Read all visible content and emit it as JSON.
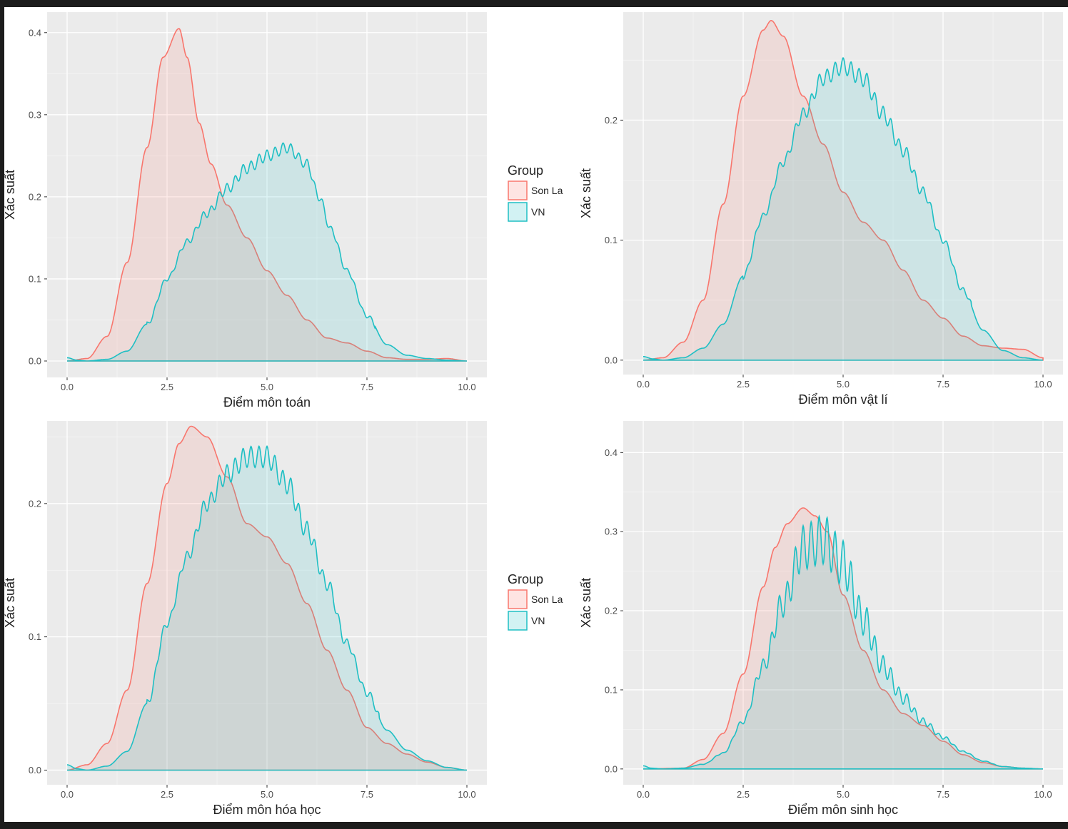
{
  "colors": {
    "son_la_line": "#F8766D",
    "son_la_fill": "#F8766D",
    "vn_line": "#1FBFC4",
    "vn_fill": "#1FBFC4",
    "panel_bg": "#EBEBEB",
    "grid": "#FFFFFF"
  },
  "legend": {
    "title": "Group",
    "entries": [
      "Son La",
      "VN"
    ]
  },
  "chart_data": [
    {
      "type": "area",
      "xlabel": "Điểm môn toán",
      "ylabel": "Xác suất",
      "xlim": [
        -0.5,
        10.5
      ],
      "ylim": [
        -0.02,
        0.425
      ],
      "xticks": [
        0,
        2.5,
        5,
        7.5,
        10
      ],
      "xtick_labels": [
        "0.0",
        "2.5",
        "5.0",
        "7.5",
        "10.0"
      ],
      "yticks": [
        0,
        0.1,
        0.2,
        0.3,
        0.4
      ],
      "ytick_labels": [
        "0.0",
        "0.1",
        "0.2",
        "0.3",
        "0.4"
      ],
      "series": [
        {
          "name": "Son La",
          "x": [
            0,
            0.5,
            1.0,
            1.5,
            2.0,
            2.4,
            2.8,
            3.0,
            3.3,
            3.6,
            4.0,
            4.5,
            5.0,
            5.5,
            6.0,
            6.5,
            7.0,
            7.5,
            8.0,
            8.5,
            9.0,
            9.5,
            10
          ],
          "y": [
            0,
            0.003,
            0.03,
            0.12,
            0.26,
            0.37,
            0.405,
            0.37,
            0.29,
            0.24,
            0.19,
            0.15,
            0.11,
            0.08,
            0.05,
            0.028,
            0.022,
            0.012,
            0.004,
            0.002,
            0.002,
            0.003,
            0
          ]
        },
        {
          "name": "VN",
          "x": [
            0,
            0.25,
            0.5,
            1.0,
            1.5,
            2.0,
            2.5,
            3.0,
            3.5,
            4.0,
            4.5,
            5.0,
            5.5,
            6.0,
            6.3,
            6.6,
            7.0,
            7.5,
            8.0,
            8.5,
            9.0,
            9.5,
            10
          ],
          "y": [
            0.004,
            0.001,
            0.0,
            0.002,
            0.012,
            0.045,
            0.1,
            0.145,
            0.18,
            0.21,
            0.235,
            0.25,
            0.26,
            0.24,
            0.2,
            0.16,
            0.11,
            0.055,
            0.02,
            0.007,
            0.003,
            0.001,
            0
          ],
          "wiggle": 0.007,
          "wiggle_from": 2.0,
          "wiggle_to": 7.7
        }
      ]
    },
    {
      "type": "area",
      "xlabel": "Điểm môn vật lí",
      "ylabel": "Xác suất",
      "xlim": [
        -0.5,
        10.5
      ],
      "ylim": [
        -0.012,
        0.29
      ],
      "xticks": [
        0,
        2.5,
        5,
        7.5,
        10
      ],
      "xtick_labels": [
        "0.0",
        "2.5",
        "5.0",
        "7.5",
        "10.0"
      ],
      "yticks": [
        0,
        0.1,
        0.2
      ],
      "ytick_labels": [
        "0.0",
        "0.1",
        "0.2"
      ],
      "series": [
        {
          "name": "Son La",
          "x": [
            0,
            0.5,
            1.0,
            1.5,
            2.0,
            2.5,
            3.0,
            3.2,
            3.5,
            4.0,
            4.5,
            5.0,
            5.5,
            6.0,
            6.5,
            7.0,
            7.5,
            8.0,
            8.5,
            9.0,
            9.5,
            10
          ],
          "y": [
            0,
            0.002,
            0.015,
            0.05,
            0.13,
            0.22,
            0.275,
            0.283,
            0.27,
            0.22,
            0.18,
            0.14,
            0.115,
            0.1,
            0.075,
            0.05,
            0.035,
            0.02,
            0.012,
            0.01,
            0.009,
            0.002
          ],
          "line_only_baseline": false
        },
        {
          "name": "VN",
          "x": [
            0,
            0.25,
            0.5,
            1.0,
            1.5,
            2.0,
            2.5,
            3.0,
            3.5,
            4.0,
            4.5,
            5.0,
            5.5,
            6.0,
            6.5,
            7.0,
            7.5,
            8.0,
            8.5,
            9.0,
            9.5,
            10
          ],
          "y": [
            0.003,
            0.001,
            0.0,
            0.002,
            0.01,
            0.03,
            0.07,
            0.12,
            0.165,
            0.205,
            0.235,
            0.245,
            0.235,
            0.205,
            0.175,
            0.14,
            0.1,
            0.058,
            0.025,
            0.008,
            0.002,
            0.0
          ],
          "wiggle": 0.007,
          "wiggle_from": 2.5,
          "wiggle_to": 8.2
        }
      ]
    },
    {
      "type": "area",
      "xlabel": "Điểm môn hóa học",
      "ylabel": "Xác suất",
      "xlim": [
        -0.5,
        10.5
      ],
      "ylim": [
        -0.011,
        0.262
      ],
      "xticks": [
        0,
        2.5,
        5,
        7.5,
        10
      ],
      "xtick_labels": [
        "0.0",
        "2.5",
        "5.0",
        "7.5",
        "10.0"
      ],
      "yticks": [
        0,
        0.1,
        0.2
      ],
      "ytick_labels": [
        "0.0",
        "0.1",
        "0.2"
      ],
      "series": [
        {
          "name": "Son La",
          "x": [
            0,
            0.5,
            1.0,
            1.5,
            2.0,
            2.5,
            2.8,
            3.1,
            3.5,
            4.0,
            4.5,
            5.0,
            5.5,
            6.0,
            6.5,
            7.0,
            7.5,
            8.0,
            8.5,
            9.0,
            9.5,
            10
          ],
          "y": [
            0,
            0.004,
            0.02,
            0.06,
            0.14,
            0.215,
            0.245,
            0.258,
            0.25,
            0.22,
            0.185,
            0.175,
            0.155,
            0.125,
            0.09,
            0.06,
            0.032,
            0.02,
            0.012,
            0.006,
            0.002,
            0.0
          ]
        },
        {
          "name": "VN",
          "x": [
            0,
            0.25,
            0.5,
            1.0,
            1.5,
            2.0,
            2.5,
            3.0,
            3.5,
            4.0,
            4.5,
            5.0,
            5.5,
            6.0,
            6.5,
            7.0,
            7.5,
            8.0,
            8.5,
            9.0,
            9.5,
            10
          ],
          "y": [
            0.004,
            0.001,
            0.0,
            0.003,
            0.014,
            0.05,
            0.11,
            0.16,
            0.2,
            0.222,
            0.235,
            0.235,
            0.215,
            0.18,
            0.14,
            0.095,
            0.058,
            0.03,
            0.015,
            0.007,
            0.002,
            0.0
          ],
          "wiggle": 0.008,
          "wiggle_from": 2.0,
          "wiggle_to": 7.8
        }
      ]
    },
    {
      "type": "area",
      "xlabel": "Điểm môn sinh học",
      "ylabel": "Xác suất",
      "xlim": [
        -0.5,
        10.5
      ],
      "ylim": [
        -0.02,
        0.44
      ],
      "xticks": [
        0,
        2.5,
        5,
        7.5,
        10
      ],
      "xtick_labels": [
        "0.0",
        "2.5",
        "5.0",
        "7.5",
        "10.0"
      ],
      "yticks": [
        0,
        0.1,
        0.2,
        0.3,
        0.4
      ],
      "ytick_labels": [
        "0.0",
        "0.1",
        "0.2",
        "0.3",
        "0.4"
      ],
      "series": [
        {
          "name": "Son La",
          "x": [
            0,
            1.0,
            1.5,
            2.0,
            2.5,
            3.0,
            3.3,
            3.6,
            4.0,
            4.3,
            4.6,
            5.0,
            5.5,
            6.0,
            6.5,
            7.0,
            7.5,
            8.0,
            8.5,
            9.0,
            9.5,
            10
          ],
          "y": [
            0,
            0.001,
            0.012,
            0.045,
            0.12,
            0.23,
            0.28,
            0.31,
            0.33,
            0.32,
            0.3,
            0.22,
            0.15,
            0.1,
            0.07,
            0.055,
            0.035,
            0.018,
            0.008,
            0.003,
            0.001,
            0.0
          ]
        },
        {
          "name": "VN",
          "x": [
            0,
            0.2,
            0.5,
            1.0,
            1.5,
            2.0,
            2.5,
            3.0,
            3.5,
            4.0,
            4.5,
            5.0,
            5.5,
            6.0,
            6.5,
            7.0,
            7.5,
            8.0,
            8.5,
            9.0,
            9.5,
            10
          ],
          "y": [
            0.004,
            0.001,
            0.0,
            0.001,
            0.006,
            0.02,
            0.06,
            0.13,
            0.21,
            0.28,
            0.29,
            0.26,
            0.19,
            0.13,
            0.09,
            0.06,
            0.04,
            0.022,
            0.01,
            0.003,
            0.001,
            0.0
          ],
          "wiggle": 0.11,
          "wiggle_from": 1.4,
          "wiggle_to": 8.8,
          "wiggle_scale": true
        }
      ]
    }
  ]
}
